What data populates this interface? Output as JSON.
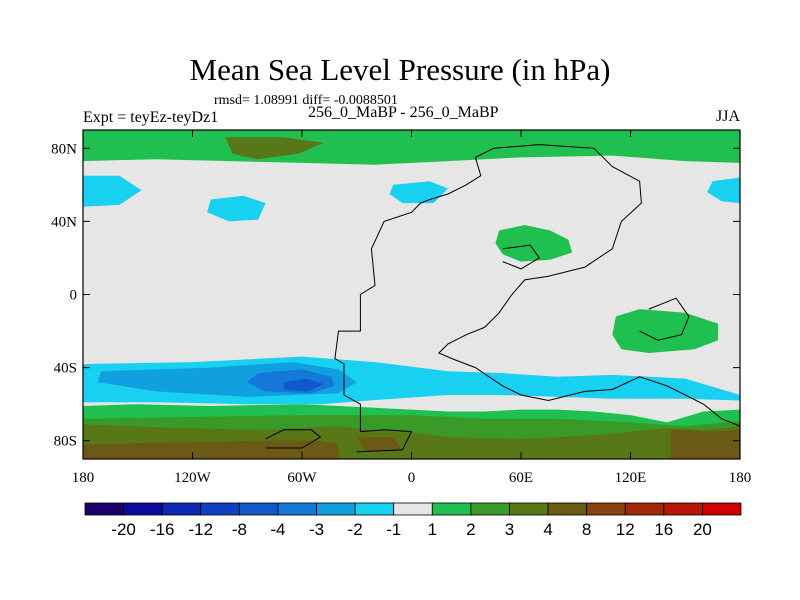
{
  "chart_data": {
    "type": "heatmap",
    "title": "Mean Sea Level Pressure (in hPa)",
    "stats": "rmsd= 1.08991 diff= -0.0088501",
    "left_label": "Expt = teyEz-teyDz1",
    "center_label": "256_0_MaBP - 256_0_MaBP",
    "right_label": "JJA",
    "x_ticks": [
      {
        "value": -180,
        "label": "180"
      },
      {
        "value": -120,
        "label": "120W"
      },
      {
        "value": -60,
        "label": "60W"
      },
      {
        "value": 0,
        "label": "0"
      },
      {
        "value": 60,
        "label": "60E"
      },
      {
        "value": 120,
        "label": "120E"
      },
      {
        "value": 180,
        "label": "180"
      }
    ],
    "y_ticks": [
      {
        "value": 80,
        "label": "80N"
      },
      {
        "value": 40,
        "label": "40N"
      },
      {
        "value": 0,
        "label": "0"
      },
      {
        "value": -40,
        "label": "40S"
      },
      {
        "value": -80,
        "label": "80S"
      }
    ],
    "xlim": [
      -180,
      180
    ],
    "ylim": [
      -90,
      90
    ],
    "colorbar": {
      "colors": [
        "#1a0068",
        "#0a0a9c",
        "#0c28b4",
        "#1040c0",
        "#1058cc",
        "#1478d8",
        "#10a0e0",
        "#18d0f0",
        "#e6e6e6",
        "#20c050",
        "#3a9a28",
        "#587818",
        "#6b5a14",
        "#8a4010",
        "#a02808",
        "#b81408",
        "#d00000"
      ],
      "labels": [
        "-20",
        "-16",
        "-12",
        "-8",
        "-4",
        "-3",
        "-2",
        "-1",
        "1",
        "2",
        "3",
        "4",
        "8",
        "12",
        "16",
        "20"
      ]
    },
    "fields": [
      {
        "band": "-1 to 1",
        "color": "#e6e6e6",
        "polygons": [
          [
            [
              -180,
              90
            ],
            [
              180,
              90
            ],
            [
              180,
              -90
            ],
            [
              -180,
              -90
            ]
          ]
        ]
      },
      {
        "band": "1 to 2",
        "color": "#20c050",
        "polygons": [
          [
            [
              -180,
              90
            ],
            [
              180,
              90
            ],
            [
              180,
              72
            ],
            [
              150,
              73
            ],
            [
              110,
              76
            ],
            [
              60,
              75
            ],
            [
              20,
              73
            ],
            [
              -20,
              71
            ],
            [
              -60,
              72
            ],
            [
              -100,
              73
            ],
            [
              -140,
              74
            ],
            [
              -180,
              73
            ]
          ],
          [
            [
              -180,
              -61
            ],
            [
              -150,
              -60
            ],
            [
              -110,
              -61
            ],
            [
              -60,
              -60
            ],
            [
              -20,
              -62
            ],
            [
              0,
              -63
            ],
            [
              20,
              -64
            ],
            [
              40,
              -64
            ],
            [
              60,
              -63
            ],
            [
              80,
              -63
            ],
            [
              100,
              -64
            ],
            [
              120,
              -66
            ],
            [
              140,
              -70
            ],
            [
              160,
              -64
            ],
            [
              180,
              -63
            ],
            [
              180,
              -90
            ],
            [
              -180,
              -90
            ]
          ],
          [
            [
              48,
              35
            ],
            [
              62,
              38
            ],
            [
              76,
              35
            ],
            [
              86,
              30
            ],
            [
              88,
              23
            ],
            [
              76,
              19
            ],
            [
              60,
              18
            ],
            [
              50,
              22
            ],
            [
              46,
              28
            ]
          ],
          [
            [
              112,
              -12
            ],
            [
              125,
              -8
            ],
            [
              150,
              -10
            ],
            [
              168,
              -16
            ],
            [
              168,
              -25
            ],
            [
              155,
              -30
            ],
            [
              130,
              -32
            ],
            [
              115,
              -30
            ],
            [
              110,
              -22
            ]
          ]
        ]
      },
      {
        "band": "2 to 3",
        "color": "#3a9a28",
        "polygons": [
          [
            [
              -180,
              -68
            ],
            [
              -120,
              -67
            ],
            [
              -60,
              -66
            ],
            [
              0,
              -66
            ],
            [
              40,
              -68
            ],
            [
              80,
              -68
            ],
            [
              120,
              -70
            ],
            [
              150,
              -72
            ],
            [
              180,
              -69
            ],
            [
              180,
              -90
            ],
            [
              -180,
              -90
            ]
          ]
        ]
      },
      {
        "band": "3 to 4",
        "color": "#587818",
        "polygons": [
          [
            [
              -102,
              86
            ],
            [
              -70,
              86
            ],
            [
              -48,
              83
            ],
            [
              -62,
              77
            ],
            [
              -85,
              74
            ],
            [
              -98,
              77
            ]
          ],
          [
            [
              -180,
              -71
            ],
            [
              -130,
              -73
            ],
            [
              -80,
              -74
            ],
            [
              -40,
              -72
            ],
            [
              -25,
              -74
            ],
            [
              -10,
              -74
            ],
            [
              20,
              -78
            ],
            [
              60,
              -79
            ],
            [
              100,
              -77
            ],
            [
              140,
              -73
            ],
            [
              160,
              -74
            ],
            [
              180,
              -72
            ],
            [
              180,
              -90
            ],
            [
              -180,
              -90
            ]
          ]
        ]
      },
      {
        "band": "4 to 8",
        "color": "#6b5a14",
        "polygons": [
          [
            [
              -180,
              -82
            ],
            [
              -130,
              -81
            ],
            [
              -80,
              -80
            ],
            [
              -50,
              -80
            ],
            [
              -40,
              -82
            ],
            [
              -40,
              -90
            ],
            [
              -180,
              -90
            ]
          ],
          [
            [
              142,
              -74
            ],
            [
              165,
              -75
            ],
            [
              180,
              -74
            ],
            [
              180,
              -90
            ],
            [
              142,
              -90
            ]
          ],
          [
            [
              -30,
              -78
            ],
            [
              -10,
              -78
            ],
            [
              -5,
              -85
            ],
            [
              -25,
              -86
            ]
          ]
        ]
      },
      {
        "band": "-1 to -2",
        "color": "#18d0f0",
        "polygons": [
          [
            [
              -180,
              -38
            ],
            [
              -120,
              -37
            ],
            [
              -60,
              -34
            ],
            [
              -20,
              -37
            ],
            [
              20,
              -42
            ],
            [
              50,
              -43
            ],
            [
              80,
              -45
            ],
            [
              110,
              -44
            ],
            [
              150,
              -46
            ],
            [
              170,
              -52
            ],
            [
              180,
              -55
            ],
            [
              180,
              -58
            ],
            [
              150,
              -57
            ],
            [
              110,
              -57
            ],
            [
              80,
              -56
            ],
            [
              50,
              -55
            ],
            [
              20,
              -55
            ],
            [
              -10,
              -57
            ],
            [
              -50,
              -60
            ],
            [
              -90,
              -60
            ],
            [
              -140,
              -59
            ],
            [
              -180,
              -59
            ]
          ],
          [
            [
              -180,
              65
            ],
            [
              -160,
              65
            ],
            [
              -148,
              57
            ],
            [
              -160,
              49
            ],
            [
              -180,
              48
            ]
          ],
          [
            [
              180,
              64
            ],
            [
              165,
              62
            ],
            [
              162,
              56
            ],
            [
              170,
              51
            ],
            [
              180,
              50
            ]
          ],
          [
            [
              -110,
              52
            ],
            [
              -92,
              54
            ],
            [
              -80,
              50
            ],
            [
              -84,
              41
            ],
            [
              -100,
              40
            ],
            [
              -112,
              45
            ]
          ],
          [
            [
              -10,
              60
            ],
            [
              10,
              62
            ],
            [
              20,
              58
            ],
            [
              12,
              50
            ],
            [
              -5,
              50
            ],
            [
              -12,
              55
            ]
          ]
        ]
      },
      {
        "band": "-2 to -3",
        "color": "#10a0e0",
        "polygons": [
          [
            [
              -170,
              -42
            ],
            [
              -110,
              -40
            ],
            [
              -65,
              -37
            ],
            [
              -40,
              -41
            ],
            [
              -30,
              -48
            ],
            [
              -40,
              -54
            ],
            [
              -90,
              -56
            ],
            [
              -140,
              -53
            ],
            [
              -172,
              -48
            ]
          ]
        ]
      },
      {
        "band": "-3 to -4",
        "color": "#1478d8",
        "polygons": [
          [
            [
              -84,
              -43
            ],
            [
              -60,
              -41
            ],
            [
              -44,
              -45
            ],
            [
              -42,
              -50
            ],
            [
              -55,
              -54
            ],
            [
              -80,
              -53
            ],
            [
              -90,
              -48
            ]
          ]
        ]
      },
      {
        "band": "-4 to -8",
        "color": "#1058cc",
        "polygons": [
          [
            [
              -70,
              -48
            ],
            [
              -57,
              -46
            ],
            [
              -48,
              -49
            ],
            [
              -57,
              -53
            ],
            [
              -70,
              -52
            ]
          ]
        ]
      }
    ],
    "coastlines": [
      [
        [
          -28,
          -75
        ],
        [
          -28,
          -60
        ],
        [
          -37,
          -55
        ],
        [
          -37,
          -38
        ],
        [
          -42,
          -35
        ],
        [
          -40,
          -20
        ],
        [
          -28,
          -20
        ],
        [
          -28,
          0
        ],
        [
          -20,
          5
        ],
        [
          -22,
          25
        ],
        [
          -15,
          40
        ],
        [
          0,
          45
        ],
        [
          5,
          50
        ],
        [
          10,
          52
        ],
        [
          20,
          55
        ],
        [
          30,
          60
        ],
        [
          38,
          65
        ],
        [
          35,
          75
        ],
        [
          45,
          80
        ],
        [
          70,
          82
        ],
        [
          100,
          80
        ],
        [
          110,
          70
        ],
        [
          125,
          62
        ],
        [
          126,
          50
        ],
        [
          115,
          40
        ],
        [
          110,
          25
        ],
        [
          95,
          15
        ],
        [
          75,
          10
        ],
        [
          62,
          8
        ],
        [
          55,
          0
        ],
        [
          48,
          -10
        ],
        [
          40,
          -18
        ],
        [
          30,
          -22
        ],
        [
          20,
          -27
        ],
        [
          15,
          -32
        ],
        [
          22,
          -35
        ],
        [
          35,
          -40
        ],
        [
          50,
          -50
        ],
        [
          60,
          -55
        ],
        [
          75,
          -58
        ],
        [
          95,
          -53
        ],
        [
          110,
          -52
        ],
        [
          125,
          -45
        ],
        [
          140,
          -50
        ],
        [
          150,
          -55
        ],
        [
          160,
          -60
        ],
        [
          170,
          -68
        ],
        [
          180,
          -72
        ]
      ],
      [
        [
          -28,
          -75
        ],
        [
          -15,
          -74
        ],
        [
          0,
          -75
        ],
        [
          -5,
          -85
        ],
        [
          -30,
          -86
        ]
      ],
      [
        [
          -80,
          -79
        ],
        [
          -70,
          -74
        ],
        [
          -55,
          -74
        ],
        [
          -50,
          -78
        ],
        [
          -60,
          -84
        ],
        [
          -80,
          -84
        ]
      ],
      [
        [
          130,
          -8
        ],
        [
          145,
          -2
        ],
        [
          152,
          -12
        ],
        [
          148,
          -22
        ],
        [
          135,
          -25
        ],
        [
          125,
          -20
        ]
      ],
      [
        [
          50,
          25
        ],
        [
          65,
          27
        ],
        [
          70,
          20
        ],
        [
          60,
          14
        ],
        [
          50,
          18
        ]
      ]
    ]
  }
}
